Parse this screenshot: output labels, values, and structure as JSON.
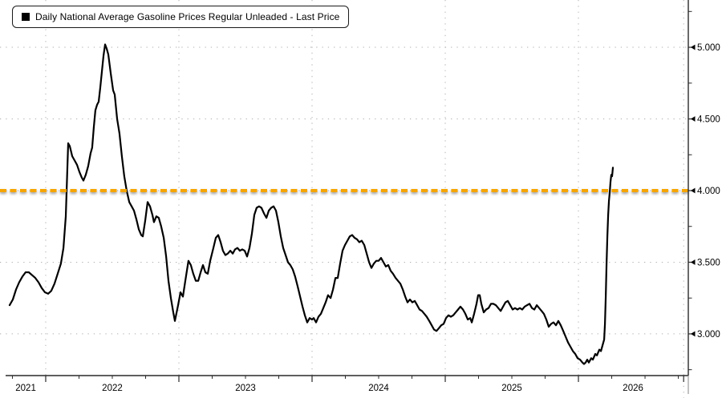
{
  "legend": {
    "marker_color": "#000000",
    "label": "Daily National Average Gasoline Prices Regular Unleaded - Last Price"
  },
  "chart_data": {
    "type": "line",
    "title": "Daily National Average Gasoline Prices Regular Unleaded - Last Price",
    "xlabel": "",
    "ylabel": "",
    "grid": true,
    "legend_position": "top-left",
    "colors": {
      "series": "#000000",
      "reference": "#F6A500",
      "grid": "#b0b0b0",
      "axis": "#2a2a2a"
    },
    "x_axis": {
      "unit": "decimal_year",
      "range": [
        2021.705,
        2026.825
      ],
      "major_ticks": [
        2022,
        2023,
        2024,
        2025,
        2026,
        2026.79
      ],
      "minor_tick_step": 0.25,
      "gridlines": [
        2022,
        2023,
        2024,
        2025,
        2026
      ],
      "end_gridline": 2026.79,
      "labels": [
        {
          "text": "2021",
          "t": 2021.85
        },
        {
          "text": "2022",
          "t": 2022.5
        },
        {
          "text": "2023",
          "t": 2023.5
        },
        {
          "text": "2024",
          "t": 2024.5
        },
        {
          "text": "2025",
          "t": 2025.5
        },
        {
          "text": "2026",
          "t": 2026.41
        }
      ]
    },
    "y_axis": {
      "range": [
        2.709,
        5.33
      ],
      "major_ticks": [
        {
          "value": 5.0,
          "label": "5.000"
        },
        {
          "value": 4.5,
          "label": "4.500"
        },
        {
          "value": 4.0,
          "label": "4.000"
        },
        {
          "value": 3.5,
          "label": "3.500"
        },
        {
          "value": 3.0,
          "label": "3.000"
        }
      ],
      "minor_ticks": [
        5.25,
        4.75,
        4.25,
        3.75,
        3.25,
        2.75
      ],
      "gridlines": [
        5.0,
        4.5,
        4.0,
        3.5,
        3.0
      ]
    },
    "reference_line": {
      "value": 4.0,
      "style": "dashed",
      "color": "#F6A500"
    },
    "series": [
      {
        "name": "Daily National Average Gasoline Prices Regular Unleaded - Last Price",
        "color": "#000000",
        "points": [
          [
            2021.729,
            3.2
          ],
          [
            2021.753,
            3.24
          ],
          [
            2021.777,
            3.31
          ],
          [
            2021.801,
            3.36
          ],
          [
            2021.825,
            3.4
          ],
          [
            2021.849,
            3.43
          ],
          [
            2021.873,
            3.43
          ],
          [
            2021.898,
            3.41
          ],
          [
            2021.922,
            3.39
          ],
          [
            2021.946,
            3.36
          ],
          [
            2021.97,
            3.32
          ],
          [
            2021.994,
            3.29
          ],
          [
            2022.018,
            3.28
          ],
          [
            2022.042,
            3.3
          ],
          [
            2022.066,
            3.35
          ],
          [
            2022.09,
            3.42
          ],
          [
            2022.114,
            3.49
          ],
          [
            2022.133,
            3.6
          ],
          [
            2022.151,
            3.82
          ],
          [
            2022.169,
            4.33
          ],
          [
            2022.181,
            4.31
          ],
          [
            2022.199,
            4.24
          ],
          [
            2022.217,
            4.21
          ],
          [
            2022.235,
            4.18
          ],
          [
            2022.253,
            4.13
          ],
          [
            2022.271,
            4.09
          ],
          [
            2022.283,
            4.07
          ],
          [
            2022.301,
            4.11
          ],
          [
            2022.319,
            4.17
          ],
          [
            2022.337,
            4.26
          ],
          [
            2022.349,
            4.3
          ],
          [
            2022.361,
            4.44
          ],
          [
            2022.373,
            4.56
          ],
          [
            2022.386,
            4.6
          ],
          [
            2022.398,
            4.62
          ],
          [
            2022.41,
            4.72
          ],
          [
            2022.422,
            4.83
          ],
          [
            2022.434,
            4.94
          ],
          [
            2022.446,
            5.02
          ],
          [
            2022.458,
            4.99
          ],
          [
            2022.47,
            4.95
          ],
          [
            2022.488,
            4.82
          ],
          [
            2022.506,
            4.7
          ],
          [
            2022.518,
            4.67
          ],
          [
            2022.536,
            4.5
          ],
          [
            2022.554,
            4.4
          ],
          [
            2022.572,
            4.24
          ],
          [
            2022.59,
            4.1
          ],
          [
            2022.608,
            4.0
          ],
          [
            2022.627,
            3.92
          ],
          [
            2022.645,
            3.89
          ],
          [
            2022.663,
            3.86
          ],
          [
            2022.681,
            3.8
          ],
          [
            2022.699,
            3.73
          ],
          [
            2022.717,
            3.69
          ],
          [
            2022.729,
            3.68
          ],
          [
            2022.747,
            3.79
          ],
          [
            2022.765,
            3.92
          ],
          [
            2022.783,
            3.89
          ],
          [
            2022.801,
            3.83
          ],
          [
            2022.813,
            3.78
          ],
          [
            2022.831,
            3.82
          ],
          [
            2022.849,
            3.81
          ],
          [
            2022.867,
            3.75
          ],
          [
            2022.886,
            3.67
          ],
          [
            2022.904,
            3.54
          ],
          [
            2022.922,
            3.37
          ],
          [
            2022.94,
            3.25
          ],
          [
            2022.958,
            3.15
          ],
          [
            2022.97,
            3.09
          ],
          [
            2022.994,
            3.2
          ],
          [
            2023.012,
            3.29
          ],
          [
            2023.03,
            3.26
          ],
          [
            2023.048,
            3.37
          ],
          [
            2023.072,
            3.51
          ],
          [
            2023.09,
            3.48
          ],
          [
            2023.108,
            3.42
          ],
          [
            2023.127,
            3.37
          ],
          [
            2023.145,
            3.37
          ],
          [
            2023.163,
            3.43
          ],
          [
            2023.181,
            3.48
          ],
          [
            2023.199,
            3.43
          ],
          [
            2023.217,
            3.42
          ],
          [
            2023.235,
            3.51
          ],
          [
            2023.259,
            3.6
          ],
          [
            2023.277,
            3.67
          ],
          [
            2023.295,
            3.69
          ],
          [
            2023.313,
            3.64
          ],
          [
            2023.331,
            3.58
          ],
          [
            2023.349,
            3.55
          ],
          [
            2023.367,
            3.56
          ],
          [
            2023.386,
            3.58
          ],
          [
            2023.404,
            3.56
          ],
          [
            2023.422,
            3.59
          ],
          [
            2023.44,
            3.6
          ],
          [
            2023.458,
            3.58
          ],
          [
            2023.476,
            3.59
          ],
          [
            2023.494,
            3.58
          ],
          [
            2023.512,
            3.54
          ],
          [
            2023.53,
            3.6
          ],
          [
            2023.548,
            3.7
          ],
          [
            2023.566,
            3.83
          ],
          [
            2023.584,
            3.88
          ],
          [
            2023.602,
            3.89
          ],
          [
            2023.62,
            3.88
          ],
          [
            2023.639,
            3.84
          ],
          [
            2023.657,
            3.81
          ],
          [
            2023.675,
            3.86
          ],
          [
            2023.693,
            3.88
          ],
          [
            2023.711,
            3.89
          ],
          [
            2023.729,
            3.86
          ],
          [
            2023.747,
            3.78
          ],
          [
            2023.765,
            3.68
          ],
          [
            2023.783,
            3.6
          ],
          [
            2023.801,
            3.55
          ],
          [
            2023.819,
            3.5
          ],
          [
            2023.837,
            3.48
          ],
          [
            2023.855,
            3.45
          ],
          [
            2023.873,
            3.4
          ],
          [
            2023.892,
            3.33
          ],
          [
            2023.91,
            3.26
          ],
          [
            2023.928,
            3.19
          ],
          [
            2023.946,
            3.13
          ],
          [
            2023.964,
            3.08
          ],
          [
            2023.982,
            3.11
          ],
          [
            2024.0,
            3.1
          ],
          [
            2024.012,
            3.11
          ],
          [
            2024.03,
            3.08
          ],
          [
            2024.048,
            3.12
          ],
          [
            2024.066,
            3.14
          ],
          [
            2024.084,
            3.18
          ],
          [
            2024.102,
            3.22
          ],
          [
            2024.12,
            3.27
          ],
          [
            2024.139,
            3.25
          ],
          [
            2024.157,
            3.31
          ],
          [
            2024.175,
            3.39
          ],
          [
            2024.193,
            3.39
          ],
          [
            2024.211,
            3.49
          ],
          [
            2024.229,
            3.58
          ],
          [
            2024.247,
            3.62
          ],
          [
            2024.265,
            3.65
          ],
          [
            2024.283,
            3.68
          ],
          [
            2024.301,
            3.69
          ],
          [
            2024.319,
            3.67
          ],
          [
            2024.337,
            3.66
          ],
          [
            2024.355,
            3.64
          ],
          [
            2024.373,
            3.65
          ],
          [
            2024.392,
            3.62
          ],
          [
            2024.41,
            3.56
          ],
          [
            2024.428,
            3.5
          ],
          [
            2024.446,
            3.46
          ],
          [
            2024.464,
            3.49
          ],
          [
            2024.482,
            3.51
          ],
          [
            2024.5,
            3.51
          ],
          [
            2024.518,
            3.53
          ],
          [
            2024.536,
            3.5
          ],
          [
            2024.554,
            3.47
          ],
          [
            2024.572,
            3.48
          ],
          [
            2024.59,
            3.44
          ],
          [
            2024.608,
            3.42
          ],
          [
            2024.627,
            3.39
          ],
          [
            2024.645,
            3.37
          ],
          [
            2024.663,
            3.35
          ],
          [
            2024.681,
            3.31
          ],
          [
            2024.699,
            3.26
          ],
          [
            2024.717,
            3.22
          ],
          [
            2024.735,
            3.24
          ],
          [
            2024.753,
            3.22
          ],
          [
            2024.771,
            3.23
          ],
          [
            2024.789,
            3.2
          ],
          [
            2024.807,
            3.17
          ],
          [
            2024.825,
            3.16
          ],
          [
            2024.843,
            3.14
          ],
          [
            2024.861,
            3.12
          ],
          [
            2024.88,
            3.09
          ],
          [
            2024.898,
            3.06
          ],
          [
            2024.916,
            3.03
          ],
          [
            2024.934,
            3.02
          ],
          [
            2024.952,
            3.04
          ],
          [
            2024.97,
            3.06
          ],
          [
            2024.988,
            3.07
          ],
          [
            2025.006,
            3.11
          ],
          [
            2025.024,
            3.13
          ],
          [
            2025.042,
            3.12
          ],
          [
            2025.06,
            3.13
          ],
          [
            2025.078,
            3.15
          ],
          [
            2025.096,
            3.17
          ],
          [
            2025.114,
            3.19
          ],
          [
            2025.133,
            3.17
          ],
          [
            2025.151,
            3.14
          ],
          [
            2025.169,
            3.1
          ],
          [
            2025.187,
            3.11
          ],
          [
            2025.199,
            3.08
          ],
          [
            2025.217,
            3.14
          ],
          [
            2025.235,
            3.21
          ],
          [
            2025.247,
            3.27
          ],
          [
            2025.259,
            3.27
          ],
          [
            2025.271,
            3.21
          ],
          [
            2025.289,
            3.15
          ],
          [
            2025.307,
            3.17
          ],
          [
            2025.325,
            3.18
          ],
          [
            2025.343,
            3.21
          ],
          [
            2025.361,
            3.21
          ],
          [
            2025.38,
            3.2
          ],
          [
            2025.398,
            3.18
          ],
          [
            2025.416,
            3.16
          ],
          [
            2025.434,
            3.19
          ],
          [
            2025.452,
            3.22
          ],
          [
            2025.47,
            3.23
          ],
          [
            2025.488,
            3.2
          ],
          [
            2025.506,
            3.17
          ],
          [
            2025.524,
            3.18
          ],
          [
            2025.542,
            3.17
          ],
          [
            2025.56,
            3.18
          ],
          [
            2025.578,
            3.17
          ],
          [
            2025.596,
            3.19
          ],
          [
            2025.614,
            3.2
          ],
          [
            2025.633,
            3.21
          ],
          [
            2025.651,
            3.18
          ],
          [
            2025.669,
            3.17
          ],
          [
            2025.687,
            3.2
          ],
          [
            2025.705,
            3.18
          ],
          [
            2025.723,
            3.16
          ],
          [
            2025.741,
            3.14
          ],
          [
            2025.759,
            3.1
          ],
          [
            2025.777,
            3.05
          ],
          [
            2025.795,
            3.07
          ],
          [
            2025.813,
            3.08
          ],
          [
            2025.831,
            3.06
          ],
          [
            2025.849,
            3.09
          ],
          [
            2025.867,
            3.06
          ],
          [
            2025.886,
            3.02
          ],
          [
            2025.904,
            2.98
          ],
          [
            2025.922,
            2.94
          ],
          [
            2025.94,
            2.91
          ],
          [
            2025.958,
            2.88
          ],
          [
            2025.976,
            2.86
          ],
          [
            2025.994,
            2.83
          ],
          [
            2026.012,
            2.82
          ],
          [
            2026.03,
            2.8
          ],
          [
            2026.042,
            2.79
          ],
          [
            2026.054,
            2.8
          ],
          [
            2026.066,
            2.82
          ],
          [
            2026.078,
            2.8
          ],
          [
            2026.096,
            2.83
          ],
          [
            2026.108,
            2.82
          ],
          [
            2026.127,
            2.86
          ],
          [
            2026.139,
            2.85
          ],
          [
            2026.157,
            2.89
          ],
          [
            2026.169,
            2.88
          ],
          [
            2026.181,
            2.92
          ],
          [
            2026.193,
            2.96
          ],
          [
            2026.199,
            3.07
          ],
          [
            2026.205,
            3.26
          ],
          [
            2026.211,
            3.49
          ],
          [
            2026.217,
            3.68
          ],
          [
            2026.223,
            3.83
          ],
          [
            2026.229,
            3.93
          ],
          [
            2026.235,
            3.99
          ],
          [
            2026.241,
            4.06
          ],
          [
            2026.247,
            4.11
          ],
          [
            2026.253,
            4.1
          ],
          [
            2026.259,
            4.16
          ]
        ]
      }
    ]
  }
}
